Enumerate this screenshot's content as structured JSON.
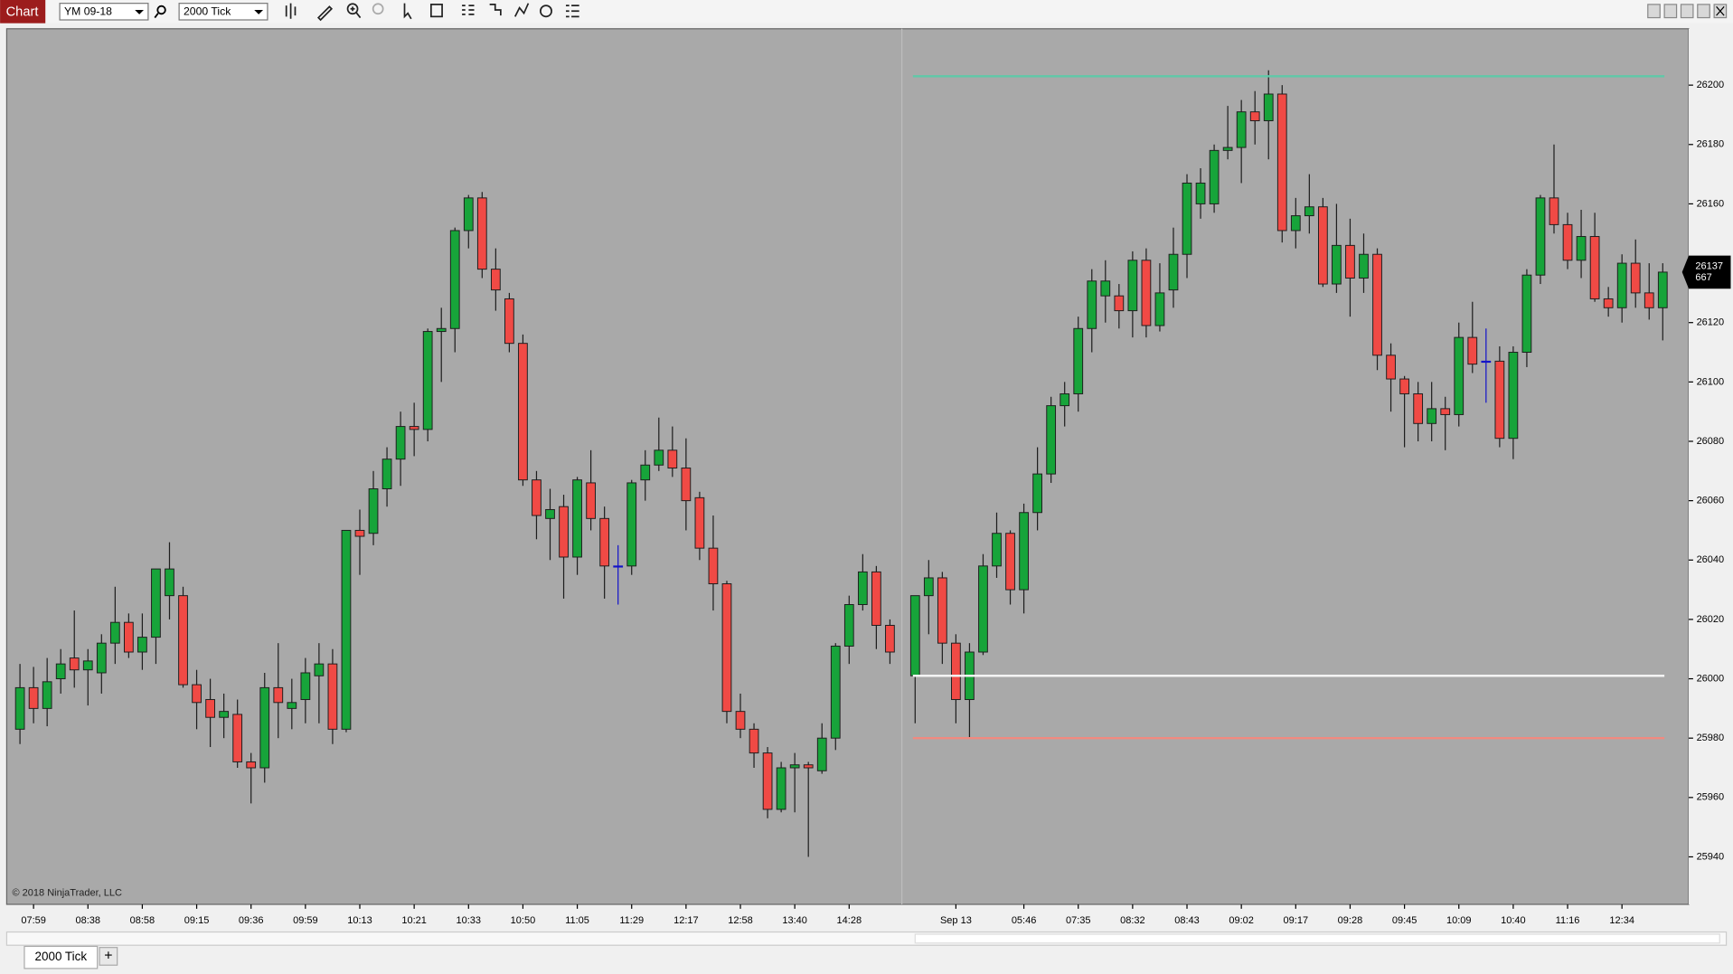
{
  "toolbar": {
    "tab": "Chart",
    "instrument": "YM 09-18",
    "interval": "2000 Tick"
  },
  "footer": {
    "copyright": "© 2018 NinjaTrader, LLC",
    "tab": "2000 Tick",
    "add": "+"
  },
  "chart_data": {
    "type": "candlestick",
    "up_color": "#17a43a",
    "down_color": "#f04a45",
    "doji_color": "#1414c8",
    "ylim": [
      25924,
      26219
    ],
    "yticks": [
      25940,
      25960,
      25980,
      26000,
      26020,
      26040,
      26060,
      26080,
      26100,
      26120,
      26140,
      26160,
      26180,
      26200
    ],
    "levels": [
      {
        "value": 26203,
        "color": "#5fc9a8"
      },
      {
        "value": 26001,
        "color": "#f4f4f4"
      },
      {
        "value": 25980,
        "color": "#f08a80"
      }
    ],
    "countdown": 667,
    "categories": [
      null,
      "07:59",
      null,
      null,
      null,
      "08:38",
      null,
      null,
      null,
      "08:58",
      null,
      null,
      null,
      "09:15",
      null,
      null,
      null,
      "09:36",
      null,
      null,
      null,
      "09:59",
      null,
      null,
      null,
      "10:13",
      null,
      null,
      null,
      "10:21",
      null,
      null,
      null,
      "10:33",
      null,
      null,
      null,
      "10:50",
      null,
      null,
      null,
      "11:05",
      null,
      null,
      null,
      "11:29",
      null,
      null,
      null,
      "12:17",
      null,
      null,
      null,
      "12:58",
      null,
      null,
      null,
      "13:40",
      null,
      null,
      null,
      "14:28",
      null,
      null,
      null,
      null,
      null,
      null,
      "Sep 13",
      null,
      null,
      null,
      null,
      "05:46",
      null,
      null,
      null,
      "07:35",
      null,
      null,
      null,
      "08:32",
      null,
      null,
      null,
      "08:43",
      null,
      null,
      null,
      "09:02",
      null,
      null,
      null,
      "09:17",
      null,
      null,
      null,
      "09:28",
      null,
      null,
      null,
      "09:45",
      null,
      null,
      null,
      "10:09",
      null,
      null,
      null,
      "10:40",
      null,
      null,
      null,
      "11:16",
      null,
      null,
      null,
      "12:34",
      null,
      null,
      null
    ],
    "open": [
      25983,
      25997,
      25990,
      26000,
      26007,
      26003,
      26002,
      26012,
      26019,
      26009,
      26014,
      26028,
      26028,
      25998,
      25993,
      25987,
      25988,
      25972,
      25970,
      25997,
      25990,
      25993,
      26001,
      26005,
      25983,
      26050,
      26049,
      26064,
      26074,
      26085,
      26084,
      26117,
      26118,
      26151,
      26162,
      26138,
      26128,
      26113,
      26067,
      26054,
      26058,
      26041,
      26066,
      26054,
      26038,
      26038,
      26067,
      26072,
      26077,
      26071,
      26061,
      26044,
      26032,
      25989,
      25983,
      25975,
      25956,
      25970,
      25971,
      25969,
      25980,
      26011,
      26025,
      26036,
      26018,
      26001,
      26028,
      26034,
      26012,
      25993,
      26009,
      26038,
      26049,
      26030,
      26056,
      26069,
      26092,
      26096,
      26118,
      26129,
      26129,
      26124,
      26141,
      26119,
      26131,
      26143,
      26160,
      26160,
      26178,
      26179,
      26191,
      26188,
      26197,
      26151,
      26156,
      26159,
      26133,
      26146,
      26135,
      26143,
      26109,
      26101,
      26096,
      26086,
      26091,
      26089,
      26115,
      26107,
      26107,
      26081,
      26110,
      26136,
      26162,
      26153,
      26141,
      26149,
      26128,
      26125,
      26140,
      26130,
      26125
    ],
    "high": [
      26005,
      26004,
      26007,
      26010,
      26023,
      26010,
      26015,
      26031,
      26022,
      26022,
      26037,
      26046,
      26031,
      26003,
      26000,
      25995,
      25993,
      25975,
      26002,
      26012,
      26000,
      26007,
      26012,
      26010,
      26050,
      26057,
      26070,
      26078,
      26090,
      26093,
      26118,
      26125,
      26152,
      26163,
      26164,
      26145,
      26130,
      26116,
      26070,
      26064,
      26062,
      26068,
      26077,
      26058,
      26045,
      26067,
      26077,
      26088,
      26085,
      26081,
      26063,
      26055,
      26033,
      25995,
      25985,
      25977,
      25972,
      25975,
      25972,
      25985,
      26012,
      26028,
      26042,
      26038,
      26020,
      26028,
      26040,
      26036,
      26015,
      26012,
      26042,
      26056,
      26050,
      26059,
      26078,
      26095,
      26100,
      26122,
      26138,
      26141,
      26133,
      26144,
      26145,
      26140,
      26152,
      26170,
      26172,
      26180,
      26193,
      26195,
      26198,
      26205,
      26200,
      26162,
      26170,
      26162,
      26160,
      26155,
      26150,
      26145,
      26113,
      26102,
      26100,
      26100,
      26095,
      26120,
      26127,
      26118,
      26112,
      26112,
      26138,
      26163,
      26180,
      26157,
      26158,
      26157,
      26132,
      26143,
      26148,
      26140,
      26140
    ],
    "low": [
      25978,
      25985,
      25984,
      25995,
      25997,
      25991,
      25995,
      26005,
      26007,
      26003,
      26005,
      26020,
      25997,
      25983,
      25977,
      25980,
      25970,
      25958,
      25965,
      25980,
      25983,
      25985,
      25985,
      25978,
      25982,
      26035,
      26045,
      26058,
      26065,
      26075,
      26080,
      26100,
      26110,
      26145,
      26135,
      26124,
      26110,
      26065,
      26047,
      26040,
      26027,
      26035,
      26050,
      26027,
      26025,
      26035,
      26060,
      26070,
      26068,
      26050,
      26040,
      26023,
      25985,
      25980,
      25970,
      25953,
      25955,
      25955,
      25940,
      25968,
      25976,
      26005,
      26023,
      26010,
      26005,
      25985,
      26015,
      26005,
      25985,
      25980,
      26008,
      26034,
      26025,
      26022,
      26050,
      26066,
      26085,
      26090,
      26110,
      26120,
      26118,
      26115,
      26115,
      26117,
      26125,
      26135,
      26155,
      26157,
      26175,
      26167,
      26180,
      26175,
      26147,
      26145,
      26150,
      26132,
      26130,
      26122,
      26130,
      26104,
      26090,
      26078,
      26080,
      26080,
      26077,
      26085,
      26103,
      26093,
      26078,
      26074,
      26105,
      26133,
      26150,
      26138,
      26135,
      26127,
      26122,
      26120,
      26125,
      26121,
      26114
    ],
    "close": [
      25997,
      25990,
      25999,
      26005,
      26003,
      26006,
      26012,
      26019,
      26009,
      26014,
      26037,
      26037,
      25998,
      25992,
      25987,
      25989,
      25972,
      25970,
      25997,
      25992,
      25992,
      26002,
      26005,
      25983,
      26050,
      26048,
      26064,
      26074,
      26085,
      26084,
      26117,
      26118,
      26151,
      26162,
      26138,
      26131,
      26113,
      26067,
      26055,
      26057,
      26041,
      26067,
      26054,
      26038,
      26038,
      26066,
      26072,
      26077,
      26071,
      26060,
      26044,
      26032,
      25989,
      25983,
      25975,
      25956,
      25970,
      25971,
      25970,
      25980,
      26011,
      26025,
      26036,
      26018,
      26009,
      26028,
      26034,
      26012,
      25993,
      26009,
      26038,
      26049,
      26030,
      26056,
      26069,
      26092,
      26096,
      26118,
      26134,
      26134,
      26124,
      26141,
      26119,
      26130,
      26143,
      26167,
      26167,
      26178,
      26179,
      26191,
      26188,
      26197,
      26151,
      26156,
      26159,
      26133,
      26146,
      26135,
      26143,
      26109,
      26101,
      26096,
      26086,
      26091,
      26089,
      26115,
      26106,
      26107,
      26081,
      26110,
      26136,
      26162,
      26153,
      26141,
      26149,
      26128,
      26125,
      26140,
      26130,
      26125,
      26137
    ]
  }
}
